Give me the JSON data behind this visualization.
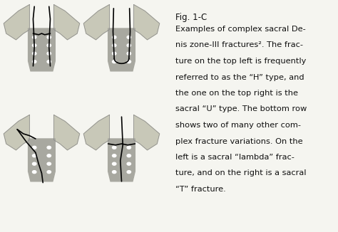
{
  "fig_label": "Fig. 1-C",
  "caption_lines": [
    "Examples of complex sacral De-",
    "nis zone-III fractures². The frac-",
    "ture on the top left is frequently",
    "referred to as the “H” type, and",
    "the one on the top right is the",
    "sacral “U” type. The bottom row",
    "shows two of many other com-",
    "plex fracture variations. On the",
    "left is a sacral “lambda” frac-",
    "ture, and on the right is a sacral",
    "“T” fracture."
  ],
  "background_color": "#f5f5f0",
  "text_color": "#111111",
  "bone_color_light": "#c8c8b8",
  "bone_color_dark": "#a8a8a0",
  "fracture_color": "#000000",
  "fig_label_fontsize": 8.5,
  "caption_fontsize": 8.2,
  "image_region": [
    0.0,
    0.0,
    0.52,
    1.0
  ],
  "text_region": [
    0.52,
    0.0,
    0.48,
    1.0
  ]
}
